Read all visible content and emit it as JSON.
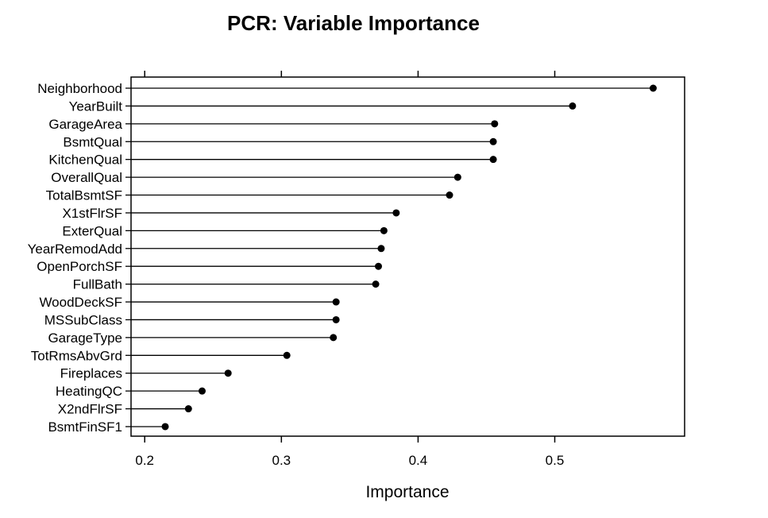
{
  "chart_data": {
    "type": "scatter",
    "subtype": "lollipop",
    "title": "PCR: Variable Importance",
    "xlabel": "Importance",
    "ylabel": "",
    "xlim": [
      0.19,
      0.595
    ],
    "xticks": [
      0.2,
      0.3,
      0.4,
      0.5
    ],
    "x_tick_labels": [
      "0.2",
      "0.3",
      "0.4",
      "0.5"
    ],
    "grid": false,
    "categories": [
      "Neighborhood",
      "YearBuilt",
      "GarageArea",
      "BsmtQual",
      "KitchenQual",
      "OverallQual",
      "TotalBsmtSF",
      "X1stFlrSF",
      "ExterQual",
      "YearRemodAdd",
      "OpenPorchSF",
      "FullBath",
      "WoodDeckSF",
      "MSSubClass",
      "GarageType",
      "TotRmsAbvGrd",
      "Fireplaces",
      "HeatingQC",
      "X2ndFlrSF",
      "BsmtFinSF1"
    ],
    "values": [
      0.572,
      0.513,
      0.456,
      0.455,
      0.455,
      0.429,
      0.423,
      0.384,
      0.375,
      0.373,
      0.371,
      0.369,
      0.34,
      0.34,
      0.338,
      0.304,
      0.261,
      0.242,
      0.232,
      0.215
    ],
    "colors": {
      "line": "#000000",
      "point": "#000000",
      "axis": "#000000"
    }
  }
}
